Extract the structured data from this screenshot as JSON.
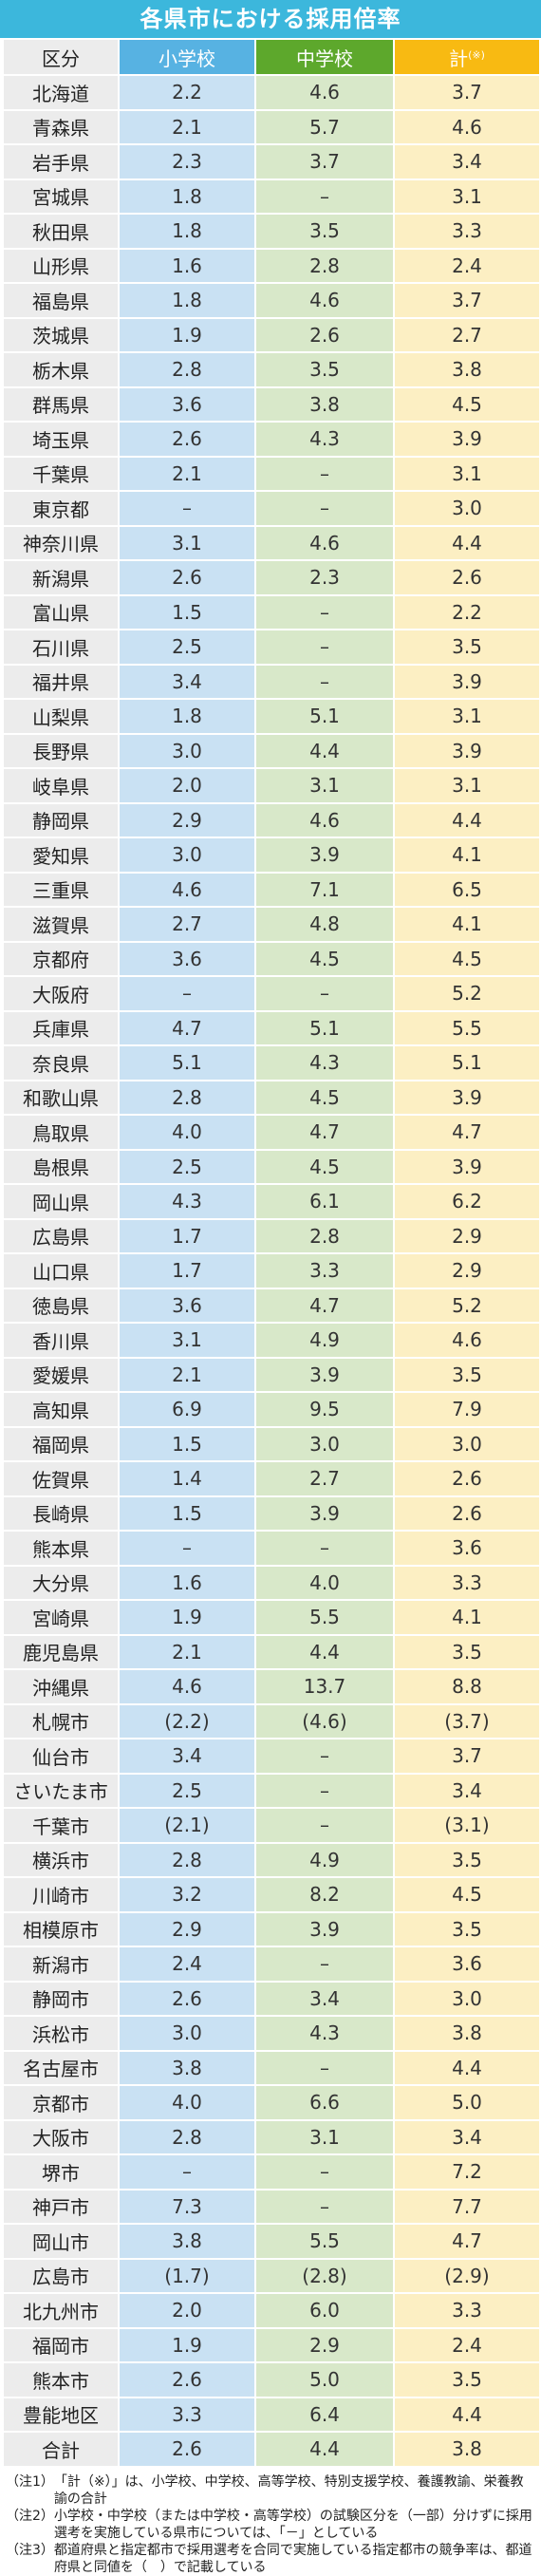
{
  "title": "各県市における採用倍率",
  "headers": {
    "region": "区分",
    "elementary": "小学校",
    "middle": "中学校",
    "total": "計",
    "total_mark": "(※)"
  },
  "rows": [
    {
      "name": "北海道",
      "e": "2.2",
      "m": "4.6",
      "t": "3.7"
    },
    {
      "name": "青森県",
      "e": "2.1",
      "m": "5.7",
      "t": "4.6"
    },
    {
      "name": "岩手県",
      "e": "2.3",
      "m": "3.7",
      "t": "3.4"
    },
    {
      "name": "宮城県",
      "e": "1.8",
      "m": "–",
      "t": "3.1"
    },
    {
      "name": "秋田県",
      "e": "1.8",
      "m": "3.5",
      "t": "3.3"
    },
    {
      "name": "山形県",
      "e": "1.6",
      "m": "2.8",
      "t": "2.4"
    },
    {
      "name": "福島県",
      "e": "1.8",
      "m": "4.6",
      "t": "3.7"
    },
    {
      "name": "茨城県",
      "e": "1.9",
      "m": "2.6",
      "t": "2.7"
    },
    {
      "name": "栃木県",
      "e": "2.8",
      "m": "3.5",
      "t": "3.8"
    },
    {
      "name": "群馬県",
      "e": "3.6",
      "m": "3.8",
      "t": "4.5"
    },
    {
      "name": "埼玉県",
      "e": "2.6",
      "m": "4.3",
      "t": "3.9"
    },
    {
      "name": "千葉県",
      "e": "2.1",
      "m": "–",
      "t": "3.1"
    },
    {
      "name": "東京都",
      "e": "–",
      "m": "–",
      "t": "3.0"
    },
    {
      "name": "神奈川県",
      "e": "3.1",
      "m": "4.6",
      "t": "4.4"
    },
    {
      "name": "新潟県",
      "e": "2.6",
      "m": "2.3",
      "t": "2.6"
    },
    {
      "name": "富山県",
      "e": "1.5",
      "m": "–",
      "t": "2.2"
    },
    {
      "name": "石川県",
      "e": "2.5",
      "m": "–",
      "t": "3.5"
    },
    {
      "name": "福井県",
      "e": "3.4",
      "m": "–",
      "t": "3.9"
    },
    {
      "name": "山梨県",
      "e": "1.8",
      "m": "5.1",
      "t": "3.1"
    },
    {
      "name": "長野県",
      "e": "3.0",
      "m": "4.4",
      "t": "3.9"
    },
    {
      "name": "岐阜県",
      "e": "2.0",
      "m": "3.1",
      "t": "3.1"
    },
    {
      "name": "静岡県",
      "e": "2.9",
      "m": "4.6",
      "t": "4.4"
    },
    {
      "name": "愛知県",
      "e": "3.0",
      "m": "3.9",
      "t": "4.1"
    },
    {
      "name": "三重県",
      "e": "4.6",
      "m": "7.1",
      "t": "6.5"
    },
    {
      "name": "滋賀県",
      "e": "2.7",
      "m": "4.8",
      "t": "4.1"
    },
    {
      "name": "京都府",
      "e": "3.6",
      "m": "4.5",
      "t": "4.5"
    },
    {
      "name": "大阪府",
      "e": "–",
      "m": "–",
      "t": "5.2"
    },
    {
      "name": "兵庫県",
      "e": "4.7",
      "m": "5.1",
      "t": "5.5"
    },
    {
      "name": "奈良県",
      "e": "5.1",
      "m": "4.3",
      "t": "5.1"
    },
    {
      "name": "和歌山県",
      "e": "2.8",
      "m": "4.5",
      "t": "3.9"
    },
    {
      "name": "鳥取県",
      "e": "4.0",
      "m": "4.7",
      "t": "4.7"
    },
    {
      "name": "島根県",
      "e": "2.5",
      "m": "4.5",
      "t": "3.9"
    },
    {
      "name": "岡山県",
      "e": "4.3",
      "m": "6.1",
      "t": "6.2"
    },
    {
      "name": "広島県",
      "e": "1.7",
      "m": "2.8",
      "t": "2.9"
    },
    {
      "name": "山口県",
      "e": "1.7",
      "m": "3.3",
      "t": "2.9"
    },
    {
      "name": "徳島県",
      "e": "3.6",
      "m": "4.7",
      "t": "5.2"
    },
    {
      "name": "香川県",
      "e": "3.1",
      "m": "4.9",
      "t": "4.6"
    },
    {
      "name": "愛媛県",
      "e": "2.1",
      "m": "3.9",
      "t": "3.5"
    },
    {
      "name": "高知県",
      "e": "6.9",
      "m": "9.5",
      "t": "7.9"
    },
    {
      "name": "福岡県",
      "e": "1.5",
      "m": "3.0",
      "t": "3.0"
    },
    {
      "name": "佐賀県",
      "e": "1.4",
      "m": "2.7",
      "t": "2.6"
    },
    {
      "name": "長崎県",
      "e": "1.5",
      "m": "3.9",
      "t": "2.6"
    },
    {
      "name": "熊本県",
      "e": "–",
      "m": "–",
      "t": "3.6"
    },
    {
      "name": "大分県",
      "e": "1.6",
      "m": "4.0",
      "t": "3.3"
    },
    {
      "name": "宮崎県",
      "e": "1.9",
      "m": "5.5",
      "t": "4.1"
    },
    {
      "name": "鹿児島県",
      "e": "2.1",
      "m": "4.4",
      "t": "3.5"
    },
    {
      "name": "沖縄県",
      "e": "4.6",
      "m": "13.7",
      "t": "8.8"
    },
    {
      "name": "札幌市",
      "e": "(2.2)",
      "m": "(4.6)",
      "t": "(3.7)"
    },
    {
      "name": "仙台市",
      "e": "3.4",
      "m": "–",
      "t": "3.7"
    },
    {
      "name": "さいたま市",
      "e": "2.5",
      "m": "–",
      "t": "3.4"
    },
    {
      "name": "千葉市",
      "e": "(2.1)",
      "m": "–",
      "t": "(3.1)"
    },
    {
      "name": "横浜市",
      "e": "2.8",
      "m": "4.9",
      "t": "3.5"
    },
    {
      "name": "川崎市",
      "e": "3.2",
      "m": "8.2",
      "t": "4.5"
    },
    {
      "name": "相模原市",
      "e": "2.9",
      "m": "3.9",
      "t": "3.5"
    },
    {
      "name": "新潟市",
      "e": "2.4",
      "m": "–",
      "t": "3.6"
    },
    {
      "name": "静岡市",
      "e": "2.6",
      "m": "3.4",
      "t": "3.0"
    },
    {
      "name": "浜松市",
      "e": "3.0",
      "m": "4.3",
      "t": "3.8"
    },
    {
      "name": "名古屋市",
      "e": "3.8",
      "m": "–",
      "t": "4.4"
    },
    {
      "name": "京都市",
      "e": "4.0",
      "m": "6.6",
      "t": "5.0"
    },
    {
      "name": "大阪市",
      "e": "2.8",
      "m": "3.1",
      "t": "3.4"
    },
    {
      "name": "堺市",
      "e": "–",
      "m": "–",
      "t": "7.2"
    },
    {
      "name": "神戸市",
      "e": "7.3",
      "m": "–",
      "t": "7.7"
    },
    {
      "name": "岡山市",
      "e": "3.8",
      "m": "5.5",
      "t": "4.7"
    },
    {
      "name": "広島市",
      "e": "(1.7)",
      "m": "(2.8)",
      "t": "(2.9)"
    },
    {
      "name": "北九州市",
      "e": "2.0",
      "m": "6.0",
      "t": "3.3"
    },
    {
      "name": "福岡市",
      "e": "1.9",
      "m": "2.9",
      "t": "2.4"
    },
    {
      "name": "熊本市",
      "e": "2.6",
      "m": "5.0",
      "t": "3.5"
    },
    {
      "name": "豊能地区",
      "e": "3.3",
      "m": "6.4",
      "t": "4.4"
    },
    {
      "name": "合計",
      "e": "2.6",
      "m": "4.4",
      "t": "3.8"
    }
  ],
  "notes": [
    {
      "label": "（注1）",
      "text": "「計（※）」は、小学校、中学校、高等学校、特別支援学校、養護教諭、栄養教諭の合計"
    },
    {
      "label": "（注2）",
      "text": "小学校・中学校（または中学校・高等学校）の試験区分を（一部）分けずに採用選考を実施している県市については、「－」としている"
    },
    {
      "label": "（注3）",
      "text": "都道府県と指定都市で採用選考を合同で実施している指定都市の競争率は、都道府県と同値を（　）で記載している"
    }
  ]
}
